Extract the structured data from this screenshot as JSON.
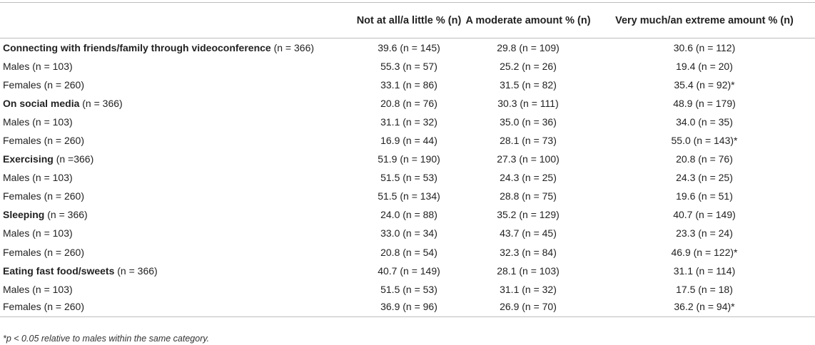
{
  "columns": [
    "",
    "Not at all/a little % (n)",
    "A moderate amount % (n)",
    "Very much/an extreme amount % (n)"
  ],
  "rows": [
    {
      "label": "Connecting with friends/family through videoconference",
      "n": "(n = 366)",
      "bold": true,
      "values": [
        "39.6 (n = 145)",
        "29.8 (n = 109)",
        "30.6 (n = 112)"
      ]
    },
    {
      "label": "Males (n = 103)",
      "bold": false,
      "values": [
        "55.3 (n = 57)",
        "25.2 (n = 26)",
        "19.4 (n = 20)"
      ]
    },
    {
      "label": "Females (n = 260)",
      "bold": false,
      "values": [
        "33.1 (n = 86)",
        "31.5 (n = 82)",
        "35.4 (n = 92)*"
      ]
    },
    {
      "label": "On social media",
      "n": "(n = 366)",
      "bold": true,
      "values": [
        "20.8 (n = 76)",
        "30.3 (n = 111)",
        "48.9 (n = 179)"
      ]
    },
    {
      "label": "Males (n = 103)",
      "bold": false,
      "values": [
        "31.1 (n = 32)",
        "35.0 (n = 36)",
        "34.0 (n = 35)"
      ]
    },
    {
      "label": "Females (n = 260)",
      "bold": false,
      "values": [
        "16.9 (n = 44)",
        "28.1 (n = 73)",
        "55.0 (n = 143)*"
      ]
    },
    {
      "label": "Exercising",
      "n": "(n =366)",
      "bold": true,
      "values": [
        "51.9 (n = 190)",
        "27.3 (n = 100)",
        "20.8 (n = 76)"
      ]
    },
    {
      "label": "Males (n = 103)",
      "bold": false,
      "values": [
        "51.5 (n = 53)",
        "24.3 (n = 25)",
        "24.3 (n = 25)"
      ]
    },
    {
      "label": "Females (n = 260)",
      "bold": false,
      "values": [
        "51.5 (n = 134)",
        "28.8 (n = 75)",
        "19.6 (n = 51)"
      ]
    },
    {
      "label": "Sleeping",
      "n": "(n = 366)",
      "bold": true,
      "values": [
        "24.0 (n = 88)",
        "35.2 (n = 129)",
        "40.7 (n = 149)"
      ]
    },
    {
      "label": "Males (n = 103)",
      "bold": false,
      "values": [
        "33.0 (n = 34)",
        "43.7 (n = 45)",
        "23.3 (n = 24)"
      ]
    },
    {
      "label": "Females (n = 260)",
      "bold": false,
      "values": [
        "20.8 (n = 54)",
        "32.3 (n = 84)",
        "46.9 (n = 122)*"
      ]
    },
    {
      "label": "Eating fast food/sweets",
      "n": "(n = 366)",
      "bold": true,
      "values": [
        "40.7 (n = 149)",
        "28.1 (n = 103)",
        "31.1 (n = 114)"
      ]
    },
    {
      "label": "Males (n = 103)",
      "bold": false,
      "values": [
        "51.5 (n = 53)",
        "31.1 (n = 32)",
        "17.5 (n = 18)"
      ]
    },
    {
      "label": "Females (n = 260)",
      "bold": false,
      "values": [
        "36.9 (n = 96)",
        "26.9 (n = 70)",
        "36.2 (n = 94)*"
      ]
    }
  ],
  "footnote": "*p < 0.05 relative to males within the same category."
}
